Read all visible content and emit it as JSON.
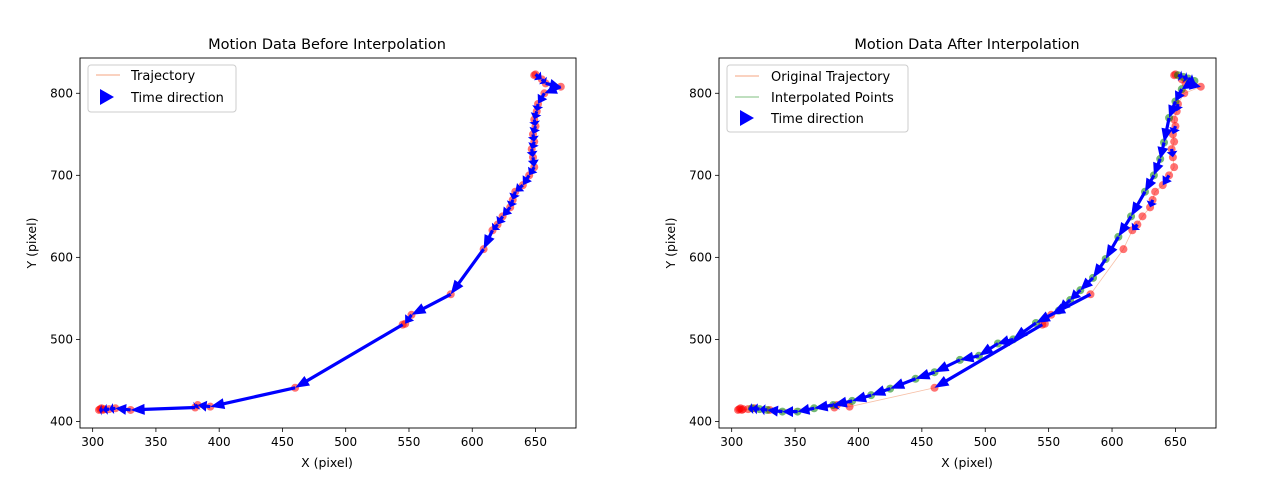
{
  "chart_data": [
    {
      "type": "scatter",
      "title": "Motion Data Before Interpolation",
      "xlabel": "X (pixel)",
      "ylabel": "Y (pixel)",
      "xlim": [
        290,
        682
      ],
      "ylim": [
        392,
        843
      ],
      "xticks": [
        300,
        350,
        400,
        450,
        500,
        550,
        600,
        650
      ],
      "yticks": [
        400,
        500,
        600,
        700,
        800
      ],
      "grid": false,
      "legend_position": "top-left",
      "legend": [
        "Trajectory",
        "Time direction"
      ],
      "series": [
        {
          "name": "Trajectory",
          "color": "#f4a582",
          "points": [
            [
              649,
              822
            ],
            [
              650,
              823
            ],
            [
              655,
              817
            ],
            [
              658,
              812
            ],
            [
              670,
              808
            ],
            [
              657,
              800
            ],
            [
              652,
              787
            ],
            [
              651,
              778
            ],
            [
              649,
              768
            ],
            [
              650,
              760
            ],
            [
              648,
              750
            ],
            [
              649,
              741
            ],
            [
              647,
              732
            ],
            [
              648,
              722
            ],
            [
              649,
              710
            ],
            [
              645,
              700
            ],
            [
              640,
              688
            ],
            [
              634,
              680
            ],
            [
              632,
              670
            ],
            [
              630,
              661
            ],
            [
              624,
              650
            ],
            [
              620,
              640
            ],
            [
              616,
              633
            ],
            [
              609,
              610
            ],
            [
              583,
              555
            ],
            [
              552,
              530
            ],
            [
              547,
              519
            ],
            [
              545,
              518
            ],
            [
              460,
              441
            ],
            [
              393,
              418
            ],
            [
              383,
              420
            ],
            [
              381,
              417
            ],
            [
              330,
              414
            ],
            [
              318,
              416
            ],
            [
              313,
              415
            ],
            [
              308,
              414
            ],
            [
              305,
              414
            ],
            [
              306,
              415
            ],
            [
              307,
              416
            ],
            [
              309,
              415
            ]
          ]
        }
      ],
      "point_color": "#ff0000",
      "arrow_color": "#0000ff"
    },
    {
      "type": "scatter",
      "title": "Motion Data After Interpolation",
      "xlabel": "X (pixel)",
      "ylabel": "Y (pixel)",
      "xlim": [
        290,
        682
      ],
      "ylim": [
        392,
        843
      ],
      "xticks": [
        300,
        350,
        400,
        450,
        500,
        550,
        600,
        650
      ],
      "yticks": [
        400,
        500,
        600,
        700,
        800
      ],
      "grid": false,
      "legend_position": "top-left",
      "legend": [
        "Original Trajectory",
        "Interpolated Points",
        "Time direction"
      ],
      "series": [
        {
          "name": "Original Trajectory",
          "color": "#f4a582",
          "points": [
            [
              649,
              822
            ],
            [
              650,
              823
            ],
            [
              655,
              817
            ],
            [
              658,
              812
            ],
            [
              670,
              808
            ],
            [
              657,
              800
            ],
            [
              652,
              787
            ],
            [
              651,
              778
            ],
            [
              649,
              768
            ],
            [
              650,
              760
            ],
            [
              648,
              750
            ],
            [
              649,
              741
            ],
            [
              647,
              732
            ],
            [
              648,
              722
            ],
            [
              649,
              710
            ],
            [
              645,
              700
            ],
            [
              640,
              688
            ],
            [
              634,
              680
            ],
            [
              632,
              670
            ],
            [
              630,
              661
            ],
            [
              624,
              650
            ],
            [
              620,
              640
            ],
            [
              616,
              633
            ],
            [
              609,
              610
            ],
            [
              583,
              555
            ],
            [
              552,
              530
            ],
            [
              547,
              519
            ],
            [
              545,
              518
            ],
            [
              460,
              441
            ],
            [
              393,
              418
            ],
            [
              383,
              420
            ],
            [
              381,
              417
            ],
            [
              330,
              414
            ],
            [
              318,
              416
            ],
            [
              313,
              415
            ],
            [
              308,
              414
            ],
            [
              305,
              414
            ],
            [
              306,
              415
            ],
            [
              307,
              416
            ],
            [
              309,
              415
            ]
          ]
        },
        {
          "name": "Interpolated Points",
          "color": "#006400",
          "points": [
            [
              652,
              822
            ],
            [
              656,
              820
            ],
            [
              660,
              818
            ],
            [
              665,
              815
            ],
            [
              655,
              805
            ],
            [
              650,
              790
            ],
            [
              645,
              770
            ],
            [
              641,
              740
            ],
            [
              638,
              720
            ],
            [
              633,
              700
            ],
            [
              626,
              680
            ],
            [
              615,
              650
            ],
            [
              605,
              625
            ],
            [
              595,
              598
            ],
            [
              585,
              575
            ],
            [
              575,
              560
            ],
            [
              567,
              548
            ],
            [
              558,
              535
            ],
            [
              540,
              520
            ],
            [
              522,
              500
            ],
            [
              510,
              495
            ],
            [
              495,
              480
            ],
            [
              480,
              475
            ],
            [
              460,
              460
            ],
            [
              445,
              452
            ],
            [
              425,
              440
            ],
            [
              410,
              432
            ],
            [
              395,
              425
            ],
            [
              380,
              420
            ],
            [
              365,
              416
            ],
            [
              352,
              412
            ],
            [
              340,
              412
            ],
            [
              328,
              414
            ],
            [
              322,
              415
            ],
            [
              316,
              416
            ]
          ]
        }
      ],
      "point_color": "#ff0000",
      "interp_color": "#008000",
      "arrow_color": "#0000ff"
    }
  ]
}
